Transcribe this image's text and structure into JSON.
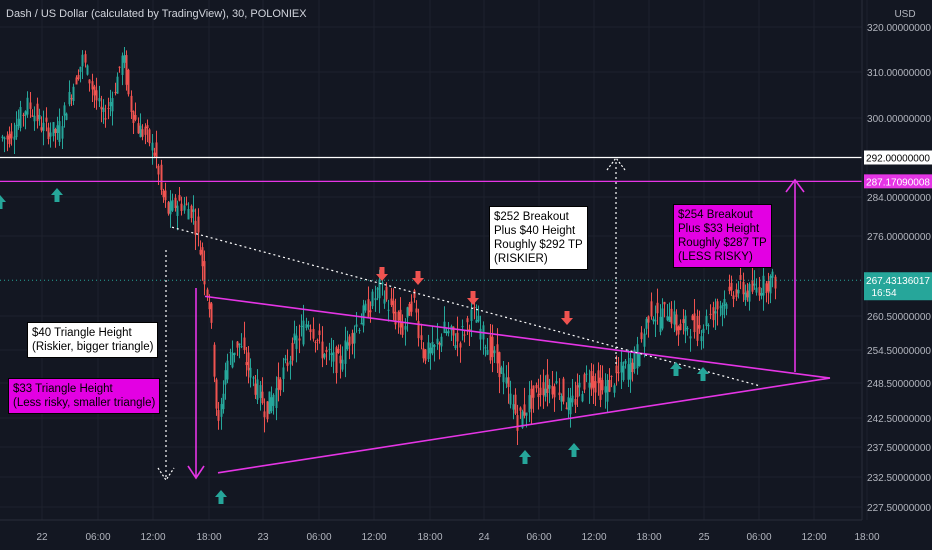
{
  "chart_data": {
    "type": "candlestick",
    "title": "Dash / US Dollar (calculated by TradingView), 30, POLONIEX",
    "currency": "USD",
    "y_ticks": [
      320,
      310,
      300,
      284,
      276,
      260.5,
      254.5,
      248.5,
      242.5,
      237.5,
      232.5,
      227.5
    ],
    "y_tick_labels": [
      "320.00000000",
      "310.00000000",
      "300.00000000",
      "284.00000000",
      "276.00000000",
      "260.50000000",
      "254.50000000",
      "248.50000000",
      "242.50000000",
      "237.50000000",
      "232.50000000",
      "227.50000000"
    ],
    "x_tick_labels": [
      "22",
      "06:00",
      "12:00",
      "18:00",
      "23",
      "06:00",
      "12:00",
      "18:00",
      "24",
      "06:00",
      "12:00",
      "18:00",
      "25",
      "06:00",
      "12:00",
      "18:00"
    ],
    "price_marks": [
      {
        "label": "292.00000000",
        "value": 292,
        "color": "#ffffff",
        "text_color": "#000000"
      },
      {
        "label": "287.17090008",
        "value": 287.17,
        "color": "#e535e5",
        "text_color": "#ffffff"
      }
    ],
    "last_price": {
      "label": "267.43136017",
      "countdown": "16:54",
      "value": 267.43,
      "color": "#26a69a"
    },
    "annotations": {
      "height40": [
        "$40 Triangle Height",
        "(Riskier, bigger triangle)"
      ],
      "height33": [
        "$33 Triangle Height",
        "(Less risky, smaller triangle)"
      ],
      "breakout252": [
        "$252 Breakout",
        "Plus $40 Height",
        "Roughly $292 TP",
        "(RISKIER)"
      ],
      "breakout254": [
        "$254 Breakout",
        "Plus $33 Height",
        "Roughly $287 TP",
        "(LESS RISKY)"
      ]
    },
    "colors": {
      "bull": "#26a69a",
      "bear": "#ef5350",
      "triangle": "#e535e5",
      "background": "#131722",
      "grid": "#1e222d",
      "text": "#b2b5be"
    }
  }
}
